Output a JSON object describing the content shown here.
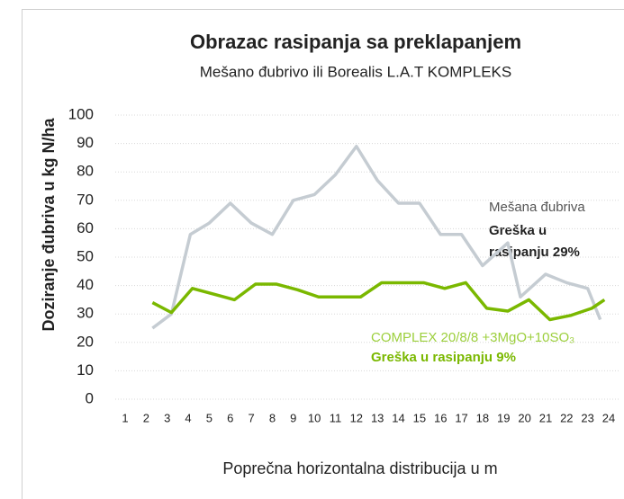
{
  "chart_data": {
    "type": "line",
    "title": "Obrazac rasipanja sa preklapanjem",
    "subtitle": "Mešano đubrivo ili Borealis L.A.T KOMPLEKS",
    "y_label": "Doziranje đubriva u kg N/ha",
    "x_label": "Poprečna horizontalna distribucija u m",
    "xlim": [
      1,
      24
    ],
    "xticks": [
      1,
      2,
      3,
      4,
      5,
      6,
      7,
      8,
      9,
      10,
      11,
      12,
      13,
      14,
      15,
      16,
      17,
      18,
      19,
      20,
      21,
      22,
      23,
      24
    ],
    "ylim": [
      0,
      100
    ],
    "yticks": [
      0,
      10,
      20,
      30,
      40,
      50,
      60,
      70,
      80,
      90,
      100
    ],
    "grid": true,
    "series": [
      {
        "name": "Mešana đubriva",
        "color": "#c5ccd2",
        "x": [
          2.3,
          3.2,
          4.1,
          5,
          6,
          7,
          8,
          9,
          10,
          11,
          12,
          13,
          14,
          15,
          16,
          17,
          18,
          19.2,
          19.8,
          21,
          22,
          23,
          23.6
        ],
        "values": [
          25,
          30,
          58,
          62,
          69,
          62,
          58,
          70,
          72,
          79,
          89,
          77,
          69,
          69,
          58,
          58,
          47,
          55,
          36,
          44,
          41,
          39,
          28
        ]
      },
      {
        "name": "COMPLEX 20/8/8 +3MgO+10SO₃",
        "color": "#7ab800",
        "x": [
          2.3,
          3.2,
          4.2,
          5.2,
          6.2,
          7.2,
          8.2,
          9.2,
          10.2,
          11.2,
          12.2,
          13.2,
          14.2,
          15.2,
          16.2,
          17.2,
          18.2,
          19.2,
          20.2,
          21.2,
          22.2,
          23.2,
          23.8
        ],
        "values": [
          34,
          30.5,
          39,
          37,
          35,
          40.5,
          40.5,
          38.5,
          36,
          36,
          36,
          41,
          41,
          41,
          39,
          41,
          32,
          31,
          35,
          28,
          29.5,
          32,
          35
        ]
      }
    ],
    "annotations": [
      "Greška u",
      "rasipanju 29%",
      "Greška u rasipanju 9%"
    ]
  }
}
